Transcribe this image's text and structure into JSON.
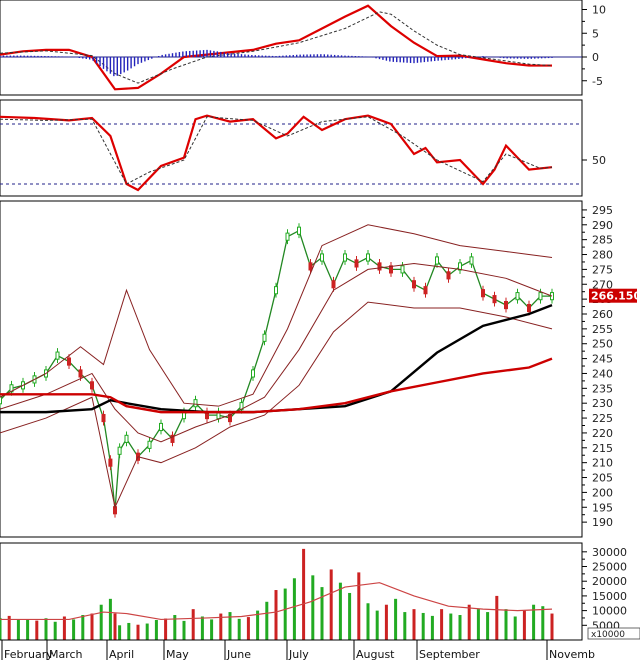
{
  "chart_data": [
    {
      "type": "line",
      "panel": "macd",
      "yticks": [
        10,
        5,
        0,
        -5
      ],
      "ylim": [
        -8,
        12
      ],
      "series": [
        {
          "role": "line",
          "color": "#dd0000",
          "x": [
            0,
            10,
            20,
            30,
            40,
            50,
            60,
            70,
            80,
            90,
            100,
            110,
            120,
            130,
            140,
            150,
            160,
            170,
            180,
            190,
            200,
            210,
            220,
            230,
            240
          ],
          "values": [
            0.5,
            1.2,
            1.5,
            1.5,
            0,
            -6.8,
            -6.5,
            -3.5,
            0,
            0.5,
            1.0,
            1.5,
            2.8,
            3.5,
            6.0,
            8.5,
            10.8,
            6.5,
            3.0,
            0.2,
            0.3,
            -0.5,
            -1.3,
            -1.8,
            -1.8
          ]
        },
        {
          "role": "signal",
          "color": "#333333",
          "dash": true,
          "x": [
            0,
            20,
            40,
            50,
            60,
            75,
            90,
            110,
            130,
            150,
            165,
            170,
            180,
            190,
            200,
            215,
            230,
            240
          ],
          "values": [
            0.8,
            1.3,
            0.3,
            -3.5,
            -5.5,
            -2.5,
            0,
            1.2,
            3.0,
            6.0,
            9.5,
            9.0,
            5.5,
            2.5,
            0.5,
            -0.5,
            -1.5,
            -1.8
          ]
        },
        {
          "role": "histogram",
          "color": "#2222bb",
          "x": [
            0,
            10,
            20,
            30,
            40,
            45,
            50,
            55,
            60,
            70,
            80,
            90,
            100,
            110,
            120,
            130,
            140,
            150,
            160,
            170,
            180,
            190,
            200,
            210,
            220,
            230,
            240
          ],
          "values": [
            0.3,
            0.3,
            0.2,
            0.1,
            -0.6,
            -2.5,
            -4.2,
            -3.0,
            -1.5,
            0.4,
            1.2,
            1.5,
            0.8,
            0.4,
            0.2,
            0.5,
            0.6,
            0.3,
            0.1,
            -1.0,
            -1.3,
            -0.8,
            -0.4,
            0.2,
            -0.3,
            -0.4,
            -0.2
          ]
        }
      ]
    },
    {
      "type": "line",
      "panel": "oscillator",
      "yticks": [
        50
      ],
      "ylim": [
        20,
        100
      ],
      "hlines": [
        80,
        30
      ],
      "series": [
        {
          "role": "line",
          "color": "#dd0000",
          "x": [
            0,
            15,
            30,
            40,
            48,
            55,
            60,
            70,
            80,
            85,
            90,
            100,
            110,
            120,
            125,
            132,
            140,
            150,
            160,
            170,
            180,
            185,
            190,
            200,
            210,
            215,
            220,
            230,
            240
          ],
          "values": [
            86,
            85,
            83,
            85,
            70,
            30,
            25,
            45,
            52,
            84,
            87,
            82,
            84,
            68,
            72,
            86,
            75,
            84,
            87,
            80,
            55,
            60,
            48,
            50,
            30,
            42,
            62,
            42,
            44
          ]
        },
        {
          "role": "signal",
          "color": "#333333",
          "dash": true,
          "x": [
            0,
            20,
            40,
            55,
            65,
            80,
            90,
            110,
            125,
            140,
            160,
            175,
            190,
            210,
            220,
            235,
            240
          ],
          "values": [
            84,
            83,
            84,
            30,
            40,
            50,
            86,
            83,
            70,
            82,
            86,
            70,
            50,
            32,
            55,
            43,
            44
          ]
        }
      ]
    },
    {
      "type": "line",
      "panel": "price",
      "yticks": [
        295,
        290,
        285,
        280,
        275,
        270,
        265,
        260,
        255,
        250,
        245,
        240,
        235,
        230,
        225,
        220,
        215,
        210,
        205,
        200,
        195,
        190
      ],
      "ylim": [
        185,
        298
      ],
      "price_tag": "266.150",
      "series": [
        {
          "role": "close",
          "color": "#228822",
          "x": [
            0,
            5,
            10,
            15,
            20,
            25,
            30,
            35,
            40,
            45,
            48,
            50,
            52,
            55,
            60,
            65,
            70,
            75,
            80,
            85,
            90,
            95,
            100,
            105,
            110,
            115,
            120,
            125,
            130,
            135,
            140,
            145,
            150,
            155,
            160,
            165,
            170,
            175,
            180,
            185,
            190,
            195,
            200,
            205,
            210,
            215,
            220,
            225,
            230,
            235,
            240
          ],
          "values": [
            231,
            235,
            236,
            238,
            240,
            246,
            244,
            240,
            236,
            225,
            210,
            194,
            214,
            218,
            212,
            216,
            222,
            218,
            226,
            230,
            226,
            226,
            225,
            229,
            240,
            252,
            268,
            286,
            288,
            276,
            279,
            270,
            279,
            277,
            279,
            276,
            275,
            275,
            270,
            268,
            278,
            273,
            276,
            278,
            267,
            265,
            263,
            266,
            262,
            266,
            266
          ]
        },
        {
          "role": "bb_upper",
          "color": "#882222",
          "x": [
            0,
            20,
            35,
            45,
            55,
            65,
            80,
            95,
            110,
            125,
            140,
            160,
            180,
            200,
            220,
            240
          ],
          "values": [
            232,
            240,
            249,
            243,
            268,
            248,
            230,
            229,
            233,
            255,
            283,
            290,
            287,
            283,
            281,
            279
          ]
        },
        {
          "role": "bb_mid",
          "color": "#882222",
          "x": [
            0,
            20,
            40,
            50,
            60,
            70,
            85,
            100,
            115,
            130,
            145,
            160,
            180,
            200,
            220,
            240
          ],
          "values": [
            228,
            233,
            240,
            228,
            220,
            217,
            222,
            226,
            232,
            248,
            268,
            275,
            277,
            275,
            272,
            266
          ]
        },
        {
          "role": "bb_lower",
          "color": "#882222",
          "x": [
            0,
            20,
            40,
            50,
            60,
            70,
            85,
            100,
            115,
            130,
            145,
            160,
            180,
            200,
            220,
            240
          ],
          "values": [
            220,
            225,
            232,
            195,
            212,
            210,
            215,
            222,
            226,
            236,
            254,
            264,
            262,
            262,
            259,
            255
          ]
        },
        {
          "role": "ma_long",
          "color": "#000000",
          "x": [
            0,
            20,
            40,
            48,
            55,
            70,
            90,
            110,
            130,
            150,
            170,
            190,
            210,
            230,
            240
          ],
          "values": [
            227,
            227,
            228,
            231,
            230,
            228,
            227,
            227,
            228,
            229,
            234,
            247,
            256,
            260,
            263
          ]
        },
        {
          "role": "ma_mid",
          "color": "#cc0000",
          "x": [
            0,
            20,
            40,
            48,
            55,
            70,
            90,
            110,
            130,
            150,
            170,
            190,
            210,
            230,
            240
          ],
          "values": [
            233,
            233,
            233,
            232,
            229,
            227,
            227,
            227,
            228,
            230,
            234,
            237,
            240,
            242,
            245
          ]
        }
      ]
    },
    {
      "type": "bar",
      "panel": "volume",
      "yticks": [
        30000,
        25000,
        20000,
        15000,
        10000,
        5000
      ],
      "ylim": [
        0,
        33000
      ],
      "unit_label": "x10000",
      "categories": [
        "February",
        "March",
        "April",
        "May",
        "June",
        "July",
        "August",
        "September",
        "Novemb"
      ],
      "x": [
        0,
        4,
        8,
        12,
        16,
        20,
        24,
        28,
        32,
        36,
        40,
        44,
        48,
        50,
        52,
        56,
        60,
        64,
        68,
        72,
        76,
        80,
        84,
        88,
        92,
        96,
        100,
        104,
        108,
        112,
        116,
        120,
        124,
        128,
        132,
        136,
        140,
        144,
        148,
        152,
        156,
        160,
        164,
        168,
        172,
        176,
        180,
        184,
        188,
        192,
        196,
        200,
        204,
        208,
        212,
        216,
        220,
        224,
        228,
        232,
        236,
        240
      ],
      "values": [
        7500,
        8200,
        6800,
        7000,
        6600,
        7400,
        6200,
        8000,
        7000,
        8500,
        9000,
        12000,
        14000,
        9000,
        5000,
        5800,
        5200,
        5600,
        6800,
        7300,
        8500,
        6500,
        10500,
        8000,
        7000,
        9000,
        9500,
        7200,
        7800,
        10000,
        13000,
        17000,
        17500,
        21000,
        31000,
        22000,
        18000,
        24000,
        19500,
        16000,
        23000,
        12500,
        10000,
        12000,
        14000,
        9500,
        10500,
        9200,
        8200,
        10500,
        9000,
        8500,
        12000,
        10500,
        9500,
        15000,
        10500,
        8000,
        10000,
        12000,
        11500,
        9000
      ],
      "ma": {
        "x": [
          0,
          30,
          45,
          55,
          70,
          90,
          105,
          120,
          135,
          150,
          165,
          180,
          195,
          210,
          225,
          240
        ],
        "values": [
          7000,
          7000,
          9500,
          9000,
          7000,
          7500,
          8000,
          9500,
          13000,
          18000,
          19500,
          15000,
          11500,
          10500,
          10000,
          10500
        ]
      }
    }
  ]
}
